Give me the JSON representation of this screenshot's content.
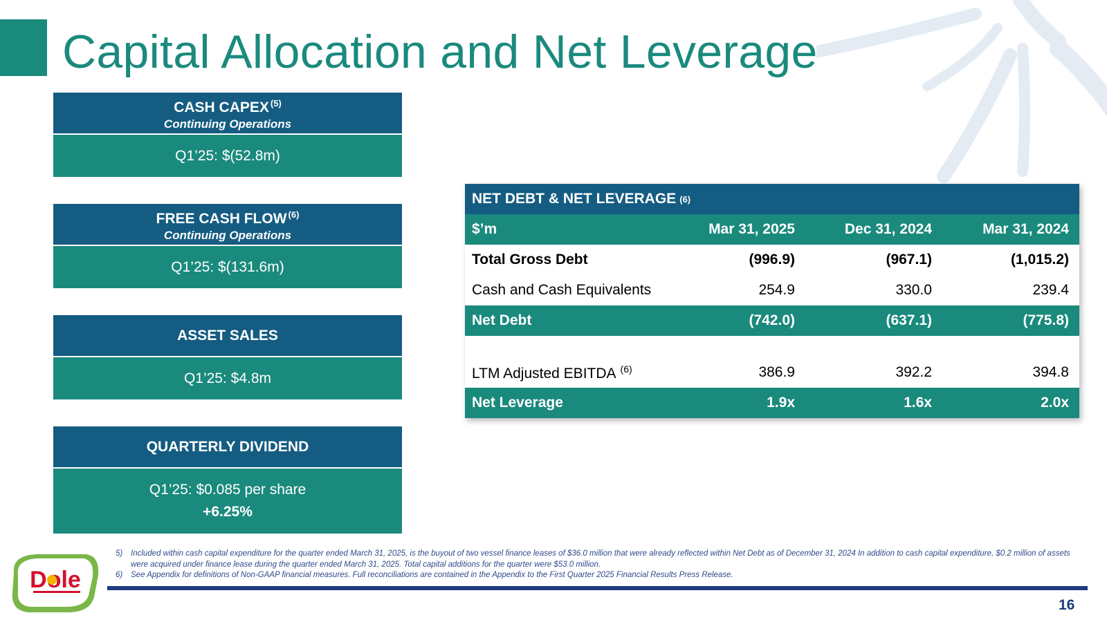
{
  "slide": {
    "title": "Capital Allocation and Net Leverage",
    "page_number": "16"
  },
  "cards": [
    {
      "title": "CASH CAPEX",
      "sup": "(5)",
      "subtitle": "Continuing Operations",
      "value": "Q1’25: $(52.8m)"
    },
    {
      "title": "FREE CASH FLOW",
      "sup": "(6)",
      "subtitle": "Continuing Operations",
      "value": "Q1’25: $(131.6m)"
    },
    {
      "title": "ASSET SALES",
      "value": "Q1’25: $4.8m"
    },
    {
      "title": "QUARTERLY DIVIDEND",
      "value": "Q1’25: $0.085 per share",
      "value2": "+6.25%"
    }
  ],
  "table": {
    "title": "NET DEBT & NET LEVERAGE",
    "title_sup": "(6)",
    "header": [
      "$’m",
      "Mar 31, 2025",
      "Dec 31, 2024",
      "Mar 31, 2024"
    ],
    "rows": [
      {
        "label": "Total Gross Debt",
        "values": [
          "(996.9)",
          "(967.1)",
          "(1,015.2)"
        ]
      },
      {
        "label": "Cash and Cash Equivalents",
        "values": [
          "254.9",
          "330.0",
          "239.4"
        ]
      },
      {
        "label": "Net Debt",
        "values": [
          "(742.0)",
          "(637.1)",
          "(775.8)"
        ]
      },
      {
        "label": "LTM Adjusted EBITDA",
        "sup": "(6)",
        "values": [
          "386.9",
          "392.2",
          "394.8"
        ]
      },
      {
        "label": "Net Leverage",
        "values": [
          "1.9x",
          "1.6x",
          "2.0x"
        ]
      }
    ]
  },
  "footnotes": [
    {
      "num": "5)",
      "text": "Included within cash capital expenditure for the quarter ended March 31, 2025, is the buyout of two vessel finance leases of $36.0 million that were already reflected within Net Debt as of December 31, 2024 In addition to cash capital expenditure, $0.2 million of assets were acquired under finance lease during the quarter ended March 31, 2025. Total capital additions for the quarter were $53.0 million."
    },
    {
      "num": "6)",
      "text": "See Appendix for definitions of Non-GAAP financial measures. Full reconciliations are contained in the Appendix to the First Quarter 2025 Financial Results Press Release."
    }
  ],
  "logo": {
    "text": "Dole"
  },
  "colors": {
    "teal": "#1a8a7d",
    "navy": "#155c82",
    "rule": "#1d3c7c",
    "logo_red": "#d3102d",
    "logo_green": "#7ab648"
  }
}
